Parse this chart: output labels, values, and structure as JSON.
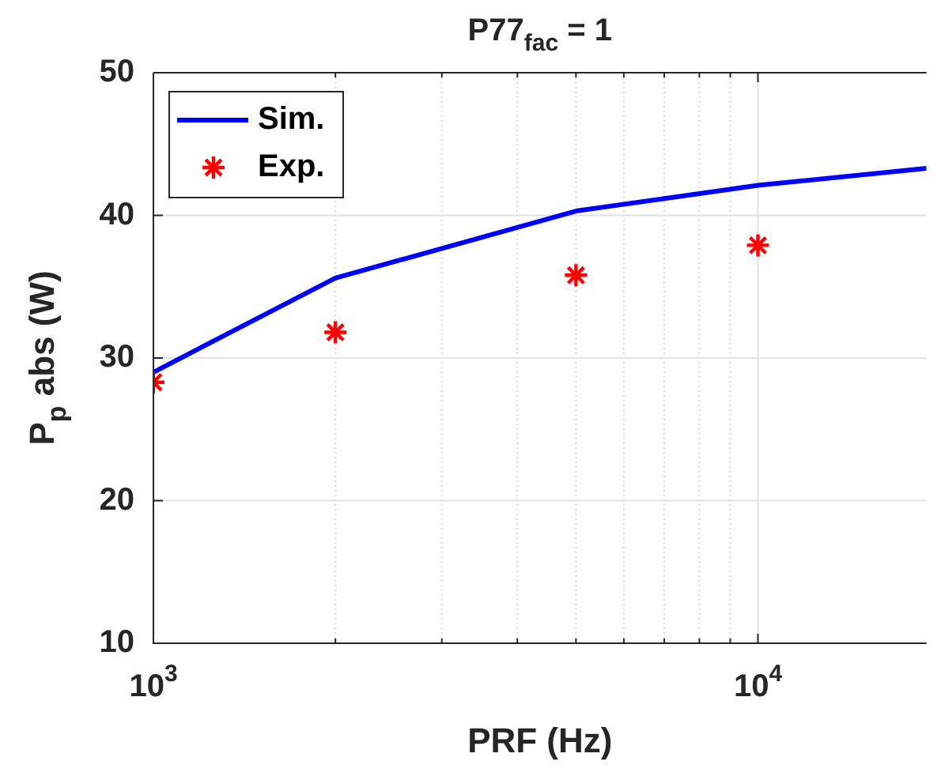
{
  "chart_data": {
    "type": "line",
    "title": "P77$_{fac}$ = 1",
    "xlabel": "PRF (Hz)",
    "ylabel": "P$_{p}$ abs (W)",
    "log": "x",
    "grid": true,
    "legend": "top left",
    "xlim": [
      1000,
      19000
    ],
    "ylim": [
      10,
      50
    ],
    "xticks": [
      {
        "value": 1000,
        "label": "10$^{3}$"
      },
      {
        "value": 2000,
        "label": null
      },
      {
        "value": 3000,
        "label": null
      },
      {
        "value": 4000,
        "label": null
      },
      {
        "value": 5000,
        "label": null
      },
      {
        "value": 6000,
        "label": null
      },
      {
        "value": 7000,
        "label": null
      },
      {
        "value": 8000,
        "label": null
      },
      {
        "value": 9000,
        "label": null
      },
      {
        "value": 10000,
        "label": "10$^{4}$"
      }
    ],
    "yticks": [
      10,
      20,
      30,
      40,
      50
    ],
    "series": [
      {
        "name": "Sim.",
        "color": "#0000ff",
        "marker": "none",
        "line_style": "solid",
        "x": [
          1000,
          2000,
          5000,
          10000,
          19000
        ],
        "values": [
          29.0,
          35.6,
          40.3,
          42.1,
          43.3
        ]
      },
      {
        "name": "Exp.",
        "type": "scatter",
        "color": "#ff0000",
        "marker": "cross",
        "x": [
          1000,
          2000,
          5000,
          10000
        ],
        "values": [
          28.3,
          31.8,
          35.8,
          37.9
        ]
      }
    ]
  }
}
